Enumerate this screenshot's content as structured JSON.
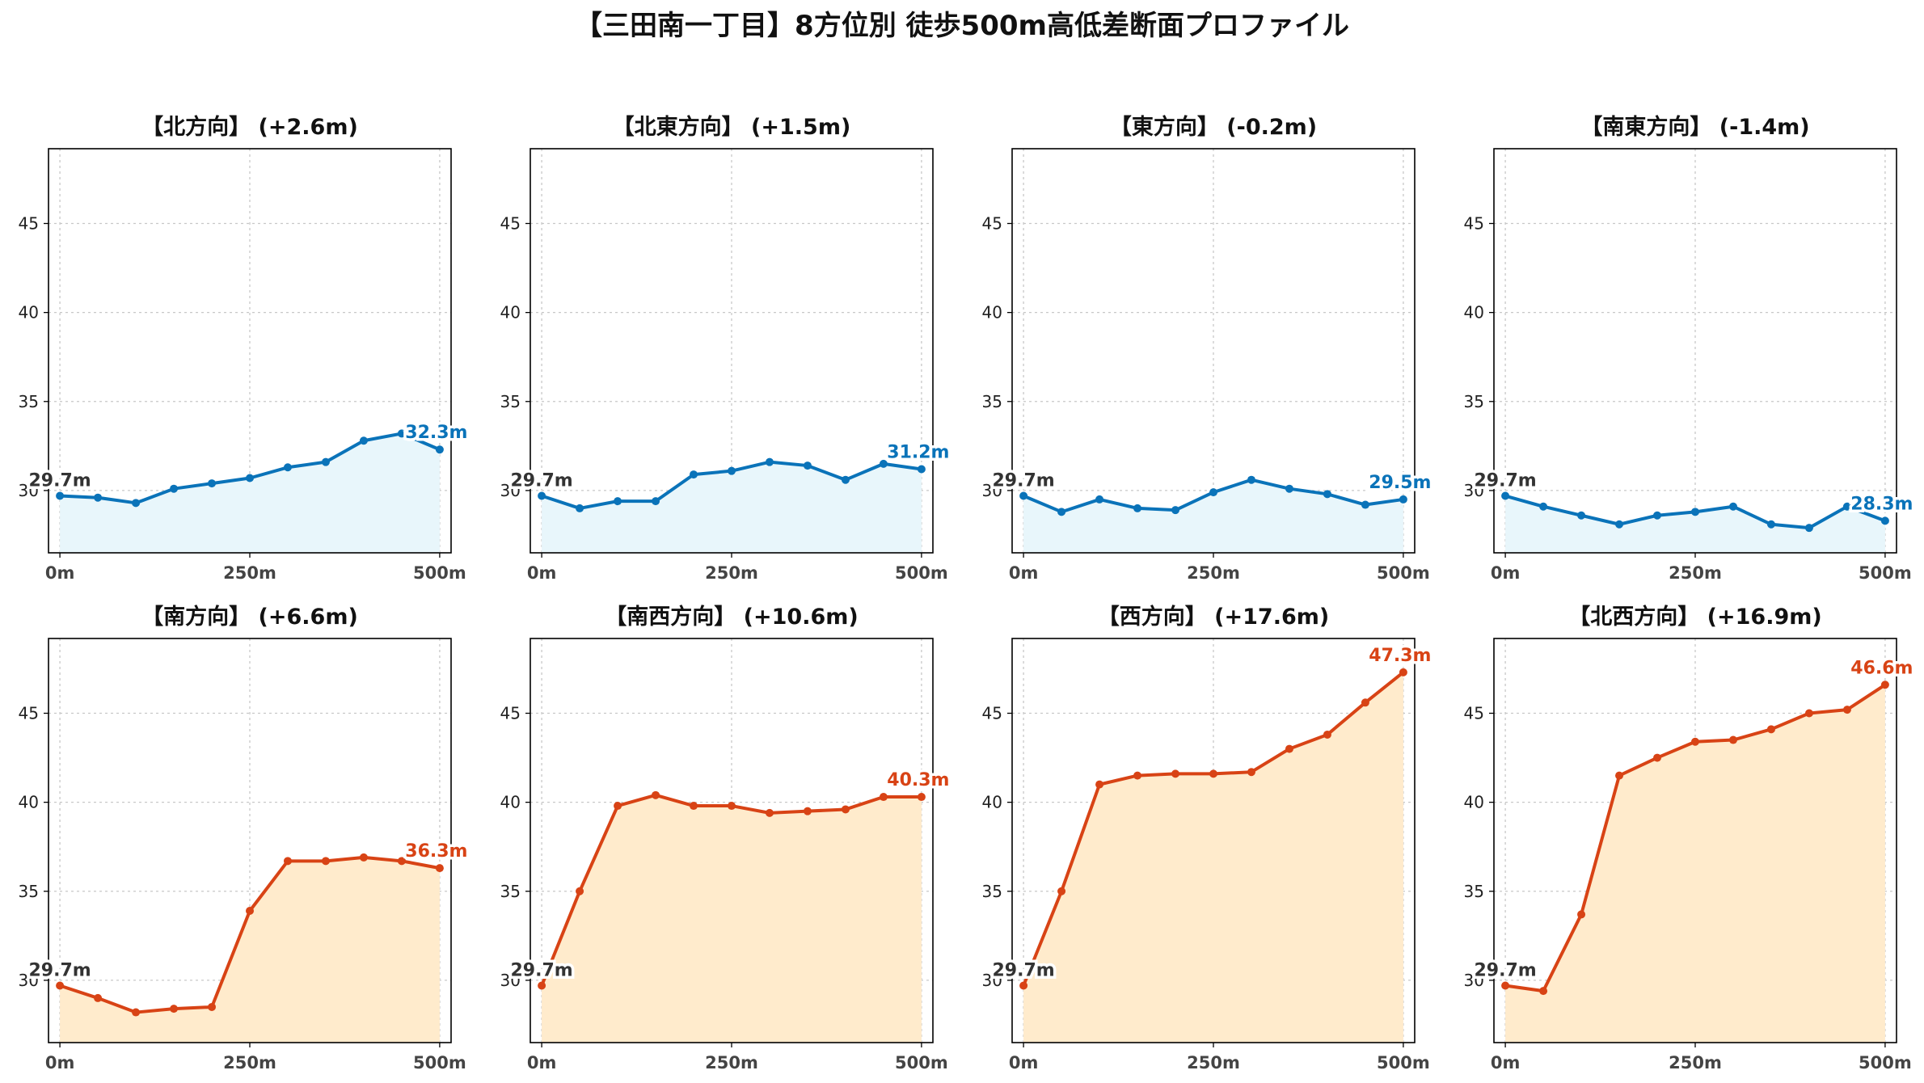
{
  "title": "【三田南一丁目】8方位別 徒歩500m高低差断面プロファイル",
  "colors": {
    "up_line": "#d84315",
    "up_fill": "#ffebcc",
    "down_line": "#0a73b9",
    "down_fill": "#e8f6fb"
  },
  "chart_data": [
    {
      "type": "line",
      "title": "【北方向】 (+2.6m)",
      "trend": "down",
      "x": [
        0,
        50,
        100,
        150,
        200,
        250,
        300,
        350,
        400,
        450,
        500
      ],
      "y": [
        29.7,
        29.6,
        29.3,
        30.1,
        30.4,
        30.7,
        31.3,
        31.6,
        32.8,
        33.2,
        32.3
      ],
      "start_label": "29.7m",
      "end_label": "32.3m",
      "xticks": [
        "0m",
        "250m",
        "500m"
      ],
      "yticks": [
        30,
        35,
        40,
        45
      ],
      "ylim": [
        26.5,
        49.2
      ],
      "xlim": [
        -15,
        515
      ],
      "grid": true
    },
    {
      "type": "line",
      "title": "【北東方向】 (+1.5m)",
      "trend": "down",
      "x": [
        0,
        50,
        100,
        150,
        200,
        250,
        300,
        350,
        400,
        450,
        500
      ],
      "y": [
        29.7,
        29.0,
        29.4,
        29.4,
        30.9,
        31.1,
        31.6,
        31.4,
        30.6,
        31.5,
        31.2
      ],
      "start_label": "29.7m",
      "end_label": "31.2m",
      "xticks": [
        "0m",
        "250m",
        "500m"
      ],
      "yticks": [
        30,
        35,
        40,
        45
      ],
      "ylim": [
        26.5,
        49.2
      ],
      "xlim": [
        -15,
        515
      ],
      "grid": true
    },
    {
      "type": "line",
      "title": "【東方向】 (-0.2m)",
      "trend": "down",
      "x": [
        0,
        50,
        100,
        150,
        200,
        250,
        300,
        350,
        400,
        450,
        500
      ],
      "y": [
        29.7,
        28.8,
        29.5,
        29.0,
        28.9,
        29.9,
        30.6,
        30.1,
        29.8,
        29.2,
        29.5
      ],
      "start_label": "29.7m",
      "end_label": "29.5m",
      "xticks": [
        "0m",
        "250m",
        "500m"
      ],
      "yticks": [
        30,
        35,
        40,
        45
      ],
      "ylim": [
        26.5,
        49.2
      ],
      "xlim": [
        -15,
        515
      ],
      "grid": true
    },
    {
      "type": "line",
      "title": "【南東方向】 (-1.4m)",
      "trend": "down",
      "x": [
        0,
        50,
        100,
        150,
        200,
        250,
        300,
        350,
        400,
        450,
        500
      ],
      "y": [
        29.7,
        29.1,
        28.6,
        28.1,
        28.6,
        28.8,
        29.1,
        28.1,
        27.9,
        29.1,
        28.3
      ],
      "start_label": "29.7m",
      "end_label": "28.3m",
      "xticks": [
        "0m",
        "250m",
        "500m"
      ],
      "yticks": [
        30,
        35,
        40,
        45
      ],
      "ylim": [
        26.5,
        49.2
      ],
      "xlim": [
        -15,
        515
      ],
      "grid": true
    },
    {
      "type": "line",
      "title": "【南方向】 (+6.6m)",
      "trend": "up",
      "x": [
        0,
        50,
        100,
        150,
        200,
        250,
        300,
        350,
        400,
        450,
        500
      ],
      "y": [
        29.7,
        29.0,
        28.2,
        28.4,
        28.5,
        33.9,
        36.7,
        36.7,
        36.9,
        36.7,
        36.3
      ],
      "start_label": "29.7m",
      "end_label": "36.3m",
      "xticks": [
        "0m",
        "250m",
        "500m"
      ],
      "yticks": [
        30,
        35,
        40,
        45
      ],
      "ylim": [
        26.5,
        49.2
      ],
      "xlim": [
        -15,
        515
      ],
      "grid": true
    },
    {
      "type": "line",
      "title": "【南西方向】 (+10.6m)",
      "trend": "up",
      "x": [
        0,
        50,
        100,
        150,
        200,
        250,
        300,
        350,
        400,
        450,
        500
      ],
      "y": [
        29.7,
        35.0,
        39.8,
        40.4,
        39.8,
        39.8,
        39.4,
        39.5,
        39.6,
        40.3,
        40.3
      ],
      "start_label": "29.7m",
      "end_label": "40.3m",
      "xticks": [
        "0m",
        "250m",
        "500m"
      ],
      "yticks": [
        30,
        35,
        40,
        45
      ],
      "ylim": [
        26.5,
        49.2
      ],
      "xlim": [
        -15,
        515
      ],
      "grid": true
    },
    {
      "type": "line",
      "title": "【西方向】 (+17.6m)",
      "trend": "up",
      "x": [
        0,
        50,
        100,
        150,
        200,
        250,
        300,
        350,
        400,
        450,
        500
      ],
      "y": [
        29.7,
        35.0,
        41.0,
        41.5,
        41.6,
        41.6,
        41.7,
        43.0,
        43.8,
        45.6,
        47.3
      ],
      "start_label": "29.7m",
      "end_label": "47.3m",
      "xticks": [
        "0m",
        "250m",
        "500m"
      ],
      "yticks": [
        30,
        35,
        40,
        45
      ],
      "ylim": [
        26.5,
        49.2
      ],
      "xlim": [
        -15,
        515
      ],
      "grid": true
    },
    {
      "type": "line",
      "title": "【北西方向】 (+16.9m)",
      "trend": "up",
      "x": [
        0,
        50,
        100,
        150,
        200,
        250,
        300,
        350,
        400,
        450,
        500
      ],
      "y": [
        29.7,
        29.4,
        33.7,
        41.5,
        42.5,
        43.4,
        43.5,
        44.1,
        45.0,
        45.2,
        46.6
      ],
      "start_label": "29.7m",
      "end_label": "46.6m",
      "xticks": [
        "0m",
        "250m",
        "500m"
      ],
      "yticks": [
        30,
        35,
        40,
        45
      ],
      "ylim": [
        26.5,
        49.2
      ],
      "xlim": [
        -15,
        515
      ],
      "grid": true
    }
  ]
}
